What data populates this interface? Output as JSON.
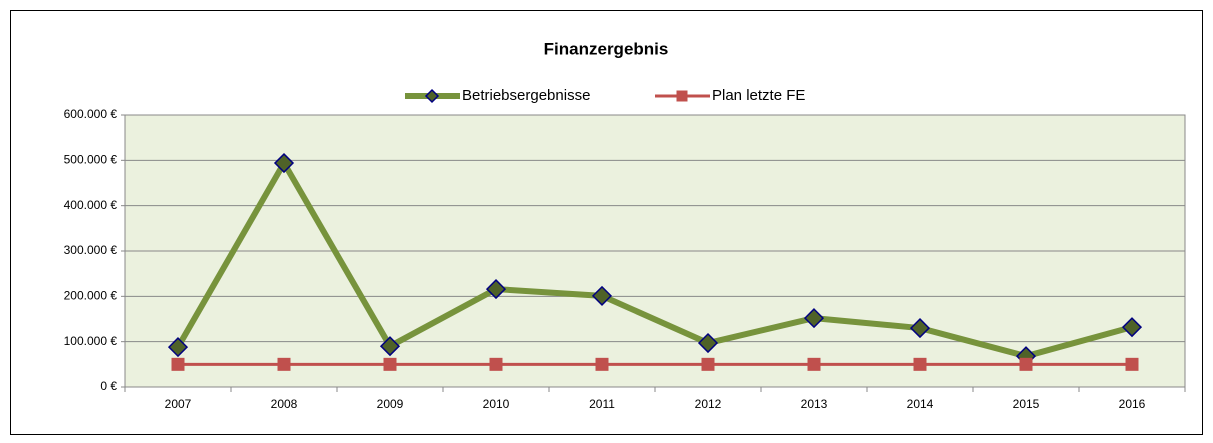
{
  "chart_data": {
    "type": "line",
    "title": "Finanzergebnis",
    "categories": [
      "2007",
      "2008",
      "2009",
      "2010",
      "2011",
      "2012",
      "2013",
      "2014",
      "2015",
      "2016"
    ],
    "series": [
      {
        "name": "Betriebsergebnisse",
        "color": "#77933c",
        "marker_color": "#4f6228",
        "marker_edge": "#000080",
        "marker": "diamond",
        "values": [
          88000,
          494000,
          90000,
          216000,
          201000,
          97000,
          152000,
          130000,
          68000,
          132000
        ]
      },
      {
        "name": "Plan letzte FE",
        "color": "#c0504d",
        "marker_color": "#c0504d",
        "marker_edge": "#c0504d",
        "marker": "square",
        "values": [
          50000,
          50000,
          50000,
          50000,
          50000,
          50000,
          50000,
          50000,
          50000,
          50000
        ]
      }
    ],
    "ylim": [
      0,
      600000
    ],
    "yticks": [
      {
        "value": 0,
        "label": "0 €"
      },
      {
        "value": 100000,
        "label": "100.000 €"
      },
      {
        "value": 200000,
        "label": "200.000 €"
      },
      {
        "value": 300000,
        "label": "300.000 €"
      },
      {
        "value": 400000,
        "label": "400.000 €"
      },
      {
        "value": 500000,
        "label": "500.000 €"
      },
      {
        "value": 600000,
        "label": "600.000 €"
      }
    ],
    "grid": true,
    "legend": "top",
    "plot_background": "#ebf1de"
  }
}
